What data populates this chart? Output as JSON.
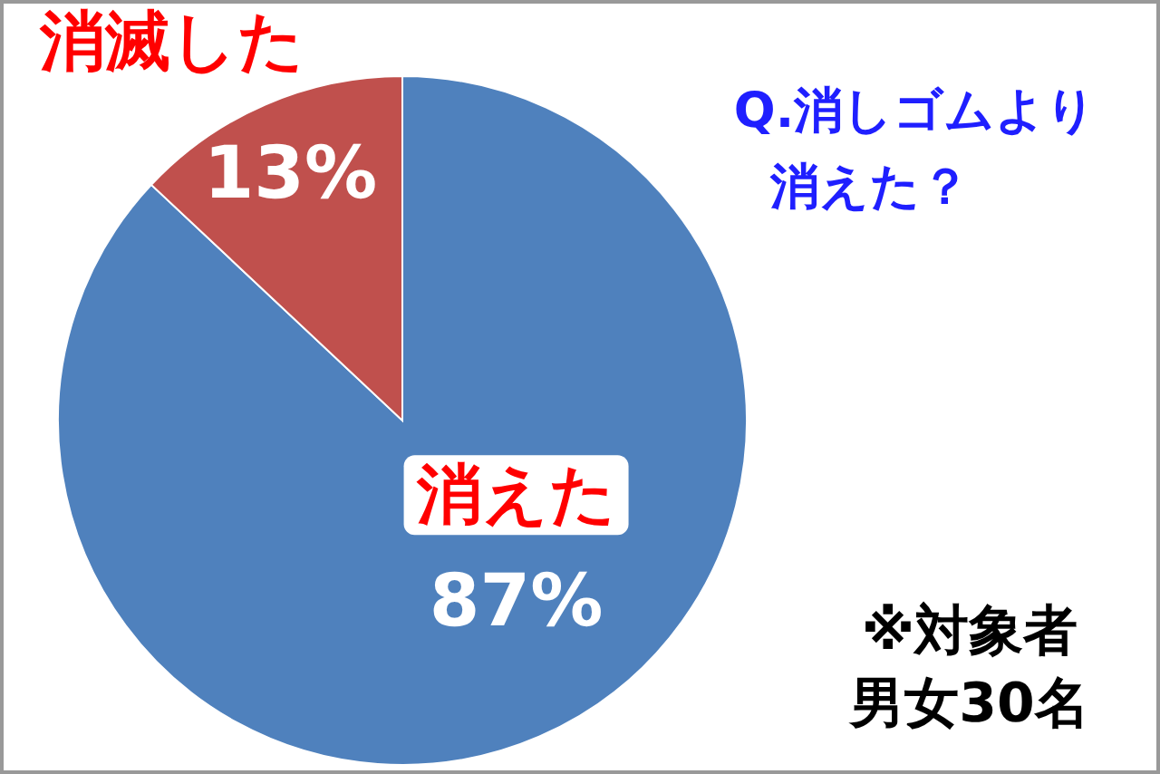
{
  "chart_data": {
    "type": "pie",
    "title": "Q.消しゴムより消えた？",
    "categories": [
      "消えた",
      "消滅した"
    ],
    "values": [
      87,
      13
    ],
    "colors": [
      "#4f81bd",
      "#c0504d"
    ],
    "value_labels": [
      "87%",
      "13%"
    ],
    "annotations": [
      "※対象者男女30名"
    ]
  }
}
